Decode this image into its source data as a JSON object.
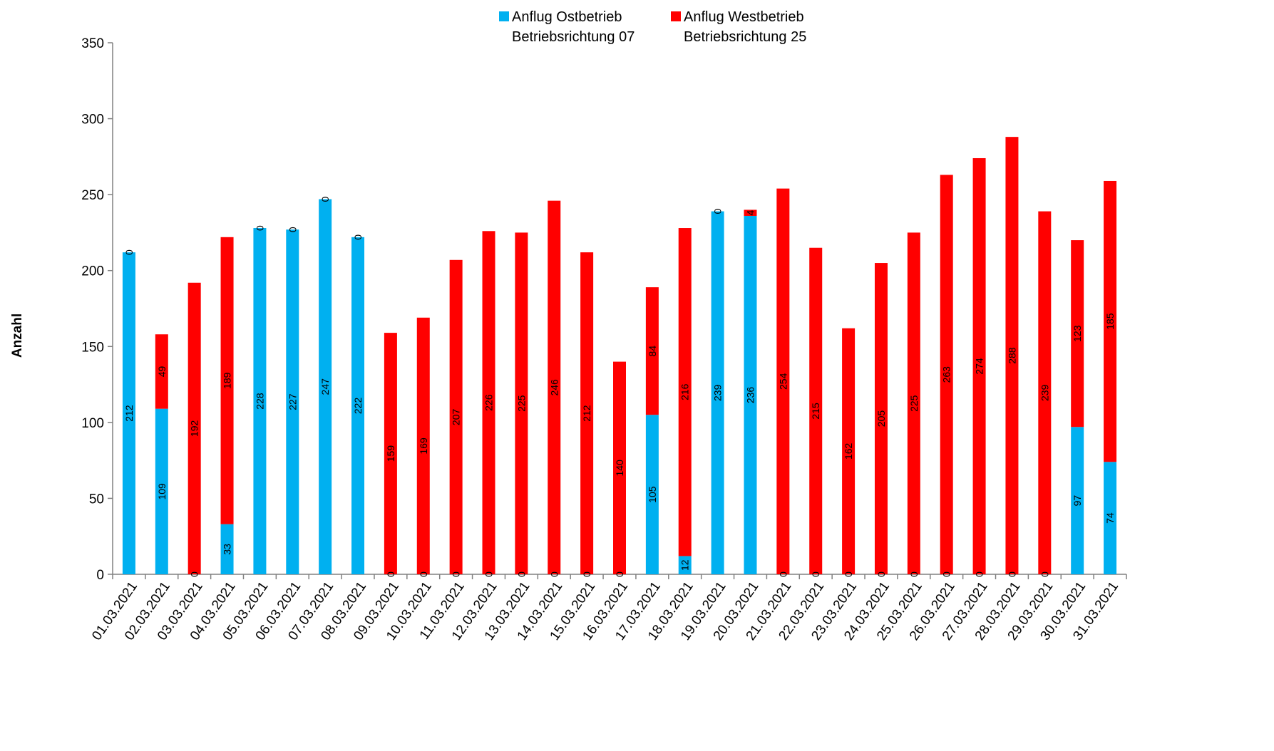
{
  "chart_data": {
    "type": "bar",
    "stacked": true,
    "ylabel": "Anzahl",
    "xlabel": "",
    "ylim": [
      0,
      350
    ],
    "yticks": [
      0,
      50,
      100,
      150,
      200,
      250,
      300,
      350
    ],
    "grid": false,
    "legend_position": "top-center",
    "categories": [
      "01.03.2021",
      "02.03.2021",
      "03.03.2021",
      "04.03.2021",
      "05.03.2021",
      "06.03.2021",
      "07.03.2021",
      "08.03.2021",
      "09.03.2021",
      "10.03.2021",
      "11.03.2021",
      "12.03.2021",
      "13.03.2021",
      "14.03.2021",
      "15.03.2021",
      "16.03.2021",
      "17.03.2021",
      "18.03.2021",
      "19.03.2021",
      "20.03.2021",
      "21.03.2021",
      "22.03.2021",
      "23.03.2021",
      "24.03.2021",
      "25.03.2021",
      "26.03.2021",
      "27.03.2021",
      "28.03.2021",
      "29.03.2021",
      "30.03.2021",
      "31.03.2021"
    ],
    "series": [
      {
        "name_line1": "Anflug Ostbetrieb",
        "name_line2": "Betriebsrichtung 07",
        "color": "#00b0f0",
        "values": [
          212,
          109,
          0,
          33,
          228,
          227,
          247,
          222,
          0,
          0,
          0,
          0,
          0,
          0,
          0,
          0,
          105,
          12,
          239,
          236,
          0,
          0,
          0,
          0,
          0,
          0,
          0,
          0,
          0,
          97,
          74
        ]
      },
      {
        "name_line1": "Anflug Westbetrieb",
        "name_line2": "Betriebsrichtung 25",
        "color": "#ff0000",
        "values": [
          0,
          49,
          192,
          189,
          0,
          0,
          0,
          0,
          159,
          169,
          207,
          226,
          225,
          246,
          212,
          140,
          84,
          216,
          0,
          4,
          254,
          215,
          162,
          205,
          225,
          263,
          274,
          288,
          239,
          123,
          185
        ]
      }
    ]
  }
}
